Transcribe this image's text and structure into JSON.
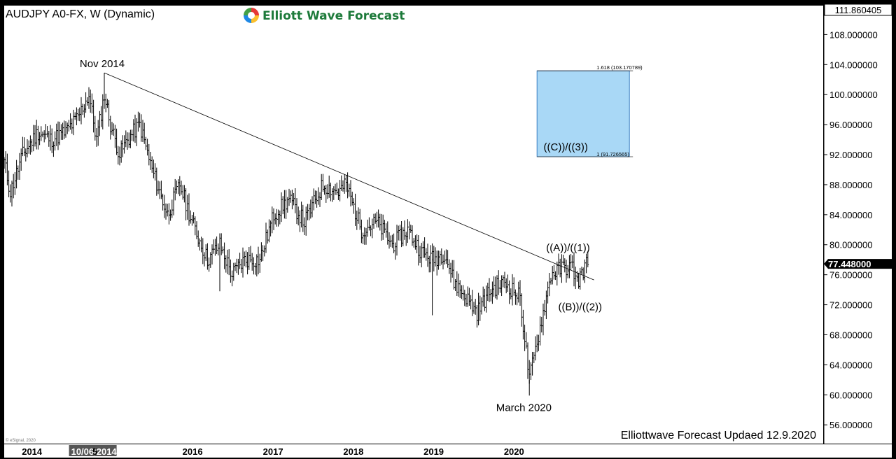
{
  "instrument": "AUDJPY A0-FX, W (Dynamic)",
  "brand": {
    "name": "Elliott Wave Forecast",
    "colors": [
      "#e53935",
      "#43a047",
      "#1e88e5",
      "#fbc02d"
    ]
  },
  "footer_note": "Elliottwave Forecast Updaed 12.9.2020",
  "copyright": "© eSignal, 2020",
  "colors": {
    "background": "#ffffff",
    "bars": "#000000",
    "target_box": "#a9d8f6",
    "target_box_border": "#3a7fc4",
    "price_tag": "#000000"
  },
  "chart_data": {
    "type": "ohlc",
    "timeframe": "W",
    "ylim": [
      53.5,
      111.860405
    ],
    "y_ticks": [
      56,
      60,
      64,
      68,
      72,
      76,
      80,
      84,
      88,
      92,
      96,
      100,
      104,
      108
    ],
    "y_tick_labels": [
      "56.000000",
      "60.000000",
      "64.000000",
      "68.000000",
      "72.000000",
      "76.000000",
      "80.000000",
      "84.000000",
      "88.000000",
      "92.000000",
      "96.000000",
      "100.000000",
      "104.000000",
      "108.000000"
    ],
    "top_price_label": "111.860405",
    "x_labels": [
      {
        "label": "2014",
        "date": "2014-01-01"
      },
      {
        "label": "10/06/2014",
        "date": "2014-10-06",
        "highlight": true
      },
      {
        "label": "5",
        "date": "2015-01-01"
      },
      {
        "label": "2016",
        "date": "2016-01-01"
      },
      {
        "label": "2017",
        "date": "2017-01-01"
      },
      {
        "label": "2018",
        "date": "2018-01-01"
      },
      {
        "label": "2019",
        "date": "2019-01-01"
      },
      {
        "label": "2020",
        "date": "2020-01-01"
      }
    ],
    "current_price": {
      "label": "77.448000",
      "value": 77.448
    },
    "trendline": {
      "from": {
        "date": "2014-11-24",
        "value": 102.9
      },
      "to": {
        "date": "2020-12-28",
        "value": 75.3
      }
    },
    "target_box": {
      "from_date": "2020-04-13",
      "to_date": "2021-06-07",
      "low": 91.726565,
      "high": 103.170789,
      "label": "((C))/((3))",
      "fib_labels": [
        {
          "text": "1.618 (103.170789)",
          "value": 103.170789
        },
        {
          "text": "1 (91.726565)",
          "value": 91.726565
        }
      ]
    },
    "annotations": [
      {
        "text": "Nov 2014",
        "date": "2014-11-24",
        "value": 102.9,
        "position": "above"
      },
      {
        "text": "((A))/((1))",
        "date": "2020-09-01",
        "value": 78.4,
        "position": "above"
      },
      {
        "text": "((B))/((2))",
        "date": "2020-10-26",
        "value": 73.3,
        "position": "below"
      },
      {
        "text": "March 2020",
        "date": "2020-03-16",
        "value": 59.9,
        "position": "below"
      }
    ],
    "start_date": "2013-08-26",
    "weeks": 380,
    "anchors": [
      [
        0,
        91
      ],
      [
        4,
        87
      ],
      [
        12,
        92
      ],
      [
        22,
        95
      ],
      [
        30,
        94
      ],
      [
        40,
        95
      ],
      [
        48,
        97
      ],
      [
        55,
        100
      ],
      [
        60,
        94
      ],
      [
        65,
        100
      ],
      [
        69,
        96
      ],
      [
        75,
        92
      ],
      [
        80,
        94
      ],
      [
        88,
        96
      ],
      [
        96,
        90
      ],
      [
        106,
        84
      ],
      [
        114,
        88
      ],
      [
        122,
        83
      ],
      [
        132,
        78
      ],
      [
        140,
        80
      ],
      [
        148,
        76
      ],
      [
        156,
        78
      ],
      [
        166,
        78
      ],
      [
        175,
        84
      ],
      [
        185,
        86
      ],
      [
        195,
        83
      ],
      [
        207,
        88
      ],
      [
        217,
        87
      ],
      [
        222,
        88
      ],
      [
        232,
        82
      ],
      [
        242,
        83
      ],
      [
        252,
        80
      ],
      [
        262,
        82
      ],
      [
        271,
        79
      ],
      [
        279,
        78
      ],
      [
        286,
        79
      ],
      [
        292,
        75
      ],
      [
        300,
        73
      ],
      [
        307,
        71
      ],
      [
        316,
        74
      ],
      [
        325,
        75
      ],
      [
        335,
        73
      ],
      [
        341,
        62
      ],
      [
        347,
        68
      ],
      [
        355,
        76
      ],
      [
        363,
        77
      ],
      [
        369,
        77
      ],
      [
        372,
        75
      ],
      [
        378,
        77.4
      ]
    ],
    "spikes": [
      {
        "week": 140,
        "low": 73.8
      },
      {
        "week": 278,
        "low": 70.6
      },
      {
        "week": 341,
        "low": 59.9
      }
    ]
  }
}
